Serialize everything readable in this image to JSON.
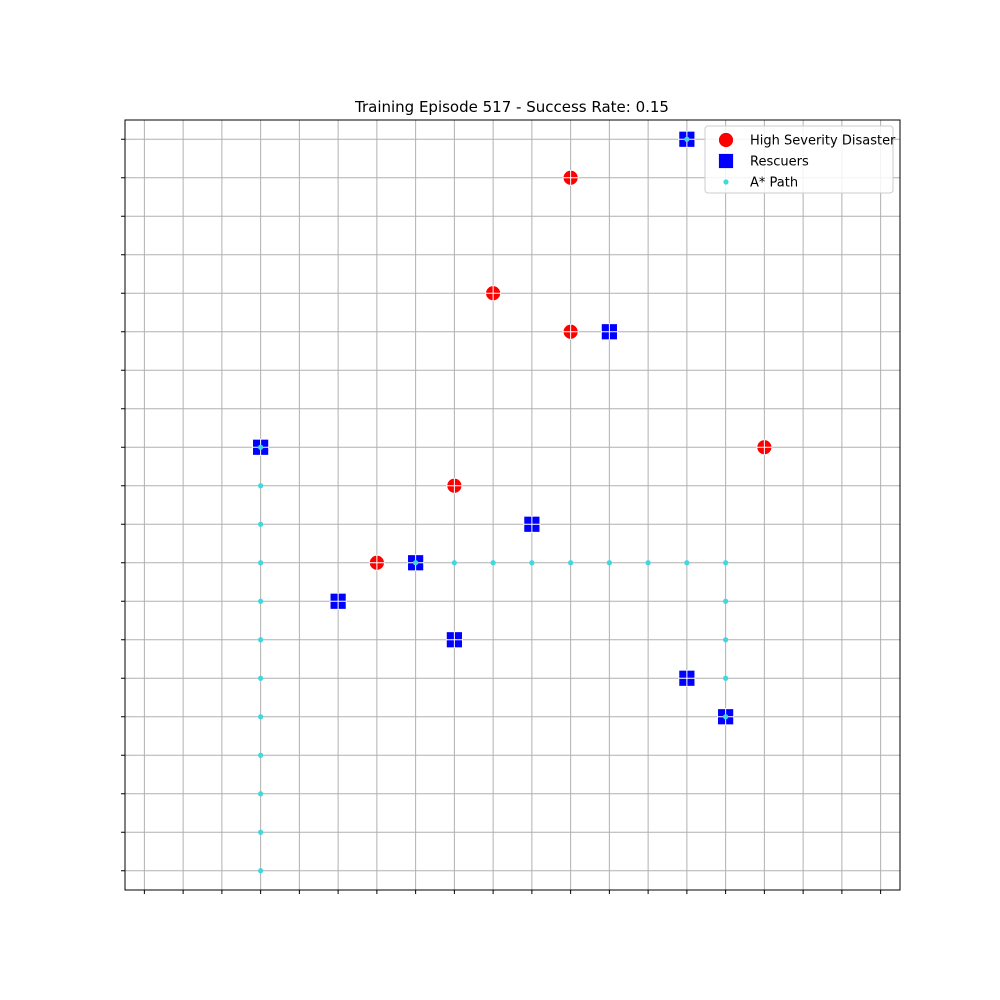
{
  "chart_data": {
    "type": "scatter",
    "title": "Training Episode 517 - Success Rate: 0.15",
    "xlabel": "",
    "ylabel": "",
    "xlim": [
      -0.5,
      19.5
    ],
    "ylim": [
      -0.5,
      19.5
    ],
    "grid": true,
    "tick_labels_visible": false,
    "legend_position": "top-right",
    "series": [
      {
        "name": "High Severity Disaster",
        "marker": "circle",
        "color": "#ff0000",
        "points": [
          [
            11,
            18
          ],
          [
            9,
            15
          ],
          [
            11,
            14
          ],
          [
            16,
            11
          ],
          [
            8,
            10
          ],
          [
            6,
            8
          ]
        ]
      },
      {
        "name": "Rescuers",
        "marker": "square",
        "color": "#0000ff",
        "points": [
          [
            14,
            19
          ],
          [
            12,
            14
          ],
          [
            3,
            11
          ],
          [
            10,
            9
          ],
          [
            7,
            8
          ],
          [
            5,
            7
          ],
          [
            8,
            6
          ],
          [
            14,
            5
          ],
          [
            15,
            4
          ]
        ]
      },
      {
        "name": "A* Path",
        "marker": "dot",
        "color": "#40d8e0",
        "points": [
          [
            3,
            11
          ],
          [
            3,
            10
          ],
          [
            3,
            9
          ],
          [
            3,
            8
          ],
          [
            3,
            7
          ],
          [
            3,
            6
          ],
          [
            3,
            5
          ],
          [
            3,
            4
          ],
          [
            3,
            3
          ],
          [
            3,
            2
          ],
          [
            3,
            1
          ],
          [
            3,
            0
          ],
          [
            7,
            8
          ],
          [
            8,
            8
          ],
          [
            9,
            8
          ],
          [
            10,
            8
          ],
          [
            11,
            8
          ],
          [
            12,
            8
          ],
          [
            13,
            8
          ],
          [
            14,
            8
          ],
          [
            15,
            8
          ],
          [
            15,
            7
          ],
          [
            15,
            6
          ],
          [
            15,
            5
          ],
          [
            15,
            4
          ],
          [
            14,
            19
          ]
        ]
      }
    ]
  }
}
